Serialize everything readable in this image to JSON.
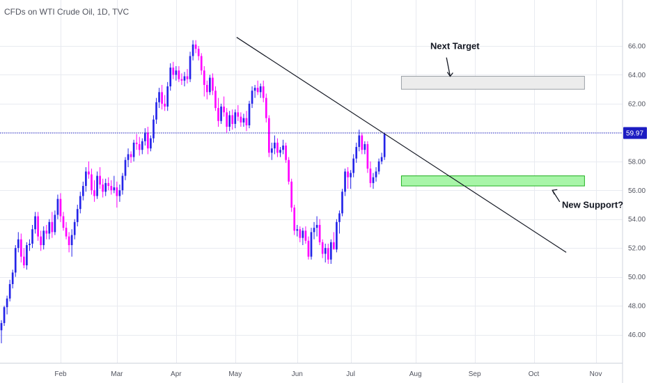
{
  "chart_data": {
    "type": "candlestick",
    "title": "CFDs on WTI Crude Oil, 1D, TVC",
    "ylim": [
      44.8,
      67.5
    ],
    "y_ticks": [
      46.0,
      48.0,
      50.0,
      52.0,
      54.0,
      56.0,
      58.0,
      60.0,
      62.0,
      64.0,
      66.0
    ],
    "y_tick_labels": [
      "46.00",
      "48.00",
      "50.00",
      "52.00",
      "54.00",
      "56.00",
      "58.00",
      "60.00",
      "62.00",
      "64.00",
      "66.00"
    ],
    "x_tick_labels": [
      "Feb",
      "Mar",
      "Apr",
      "May",
      "Jun",
      "Jul",
      "Aug",
      "Sep",
      "Oct",
      "Nov"
    ],
    "x_tick_index": [
      21,
      41,
      62,
      83,
      105,
      124,
      147,
      168,
      189,
      211
    ],
    "x_index_range": [
      -0.5,
      220.5
    ],
    "candles_ohlc": [
      [
        46.3,
        47.0,
        45.4,
        46.8
      ],
      [
        46.8,
        48.0,
        46.6,
        47.9
      ],
      [
        47.9,
        48.7,
        47.4,
        48.5
      ],
      [
        48.5,
        49.8,
        48.3,
        49.5
      ],
      [
        49.5,
        50.5,
        49.2,
        50.3
      ],
      [
        50.3,
        52.2,
        50.0,
        52.0
      ],
      [
        52.0,
        53.1,
        51.7,
        52.6
      ],
      [
        52.6,
        53.0,
        51.0,
        51.4
      ],
      [
        51.4,
        52.0,
        50.6,
        50.8
      ],
      [
        50.8,
        52.4,
        50.5,
        52.2
      ],
      [
        52.2,
        52.6,
        51.8,
        52.3
      ],
      [
        52.3,
        53.6,
        52.0,
        53.3
      ],
      [
        53.3,
        54.5,
        53.0,
        54.2
      ],
      [
        54.2,
        54.5,
        52.5,
        52.8
      ],
      [
        52.8,
        53.2,
        51.8,
        52.2
      ],
      [
        52.2,
        53.5,
        51.9,
        53.2
      ],
      [
        53.2,
        53.6,
        52.6,
        53.0
      ],
      [
        53.0,
        54.0,
        52.6,
        53.8
      ],
      [
        53.8,
        54.5,
        52.7,
        53.1
      ],
      [
        53.1,
        54.6,
        52.9,
        54.3
      ],
      [
        54.3,
        55.7,
        54.0,
        55.4
      ],
      [
        55.4,
        55.8,
        53.8,
        54.2
      ],
      [
        54.2,
        54.5,
        53.2,
        53.4
      ],
      [
        53.4,
        53.8,
        52.6,
        52.8
      ],
      [
        52.8,
        53.1,
        51.7,
        52.2
      ],
      [
        52.2,
        53.3,
        51.4,
        52.9
      ],
      [
        52.9,
        54.0,
        52.6,
        53.8
      ],
      [
        53.8,
        55.0,
        53.5,
        54.7
      ],
      [
        54.7,
        55.9,
        54.4,
        55.6
      ],
      [
        55.6,
        56.6,
        55.3,
        56.3
      ],
      [
        56.3,
        57.6,
        55.9,
        57.3
      ],
      [
        57.3,
        58.0,
        56.8,
        57.1
      ],
      [
        57.1,
        57.5,
        55.7,
        56.0
      ],
      [
        56.0,
        56.7,
        55.2,
        55.6
      ],
      [
        55.6,
        57.3,
        55.4,
        57.0
      ],
      [
        57.0,
        57.6,
        56.1,
        56.4
      ],
      [
        56.4,
        56.8,
        55.5,
        55.9
      ],
      [
        55.9,
        56.8,
        55.6,
        56.5
      ],
      [
        56.5,
        56.9,
        56.0,
        56.3
      ],
      [
        56.3,
        56.7,
        55.7,
        56.0
      ],
      [
        56.0,
        57.0,
        55.8,
        56.2
      ],
      [
        56.2,
        56.6,
        54.8,
        55.6
      ],
      [
        55.6,
        56.4,
        55.2,
        56.0
      ],
      [
        56.0,
        57.2,
        55.7,
        57.0
      ],
      [
        57.0,
        58.3,
        56.7,
        58.1
      ],
      [
        58.1,
        58.9,
        57.6,
        58.5
      ],
      [
        58.5,
        58.7,
        57.9,
        58.3
      ],
      [
        58.3,
        59.5,
        58.0,
        59.3
      ],
      [
        59.3,
        59.9,
        58.8,
        59.2
      ],
      [
        59.2,
        59.7,
        58.4,
        58.8
      ],
      [
        58.8,
        59.6,
        58.5,
        59.4
      ],
      [
        59.4,
        60.3,
        59.1,
        60.0
      ],
      [
        60.0,
        60.4,
        58.5,
        58.9
      ],
      [
        58.9,
        59.8,
        58.7,
        59.6
      ],
      [
        59.6,
        61.2,
        59.3,
        60.9
      ],
      [
        60.9,
        62.4,
        60.6,
        62.1
      ],
      [
        62.1,
        63.1,
        61.7,
        62.8
      ],
      [
        62.8,
        63.3,
        61.6,
        62.0
      ],
      [
        62.0,
        62.6,
        61.5,
        61.8
      ],
      [
        61.8,
        63.5,
        61.5,
        63.2
      ],
      [
        63.2,
        64.8,
        62.9,
        64.5
      ],
      [
        64.5,
        64.9,
        63.7,
        64.0
      ],
      [
        64.0,
        64.6,
        63.6,
        64.3
      ],
      [
        64.3,
        64.6,
        63.5,
        63.7
      ],
      [
        63.7,
        64.1,
        63.3,
        63.6
      ],
      [
        63.6,
        64.2,
        63.2,
        63.9
      ],
      [
        63.9,
        64.4,
        63.4,
        63.7
      ],
      [
        63.7,
        65.6,
        63.5,
        65.3
      ],
      [
        65.3,
        66.4,
        65.0,
        66.1
      ],
      [
        66.1,
        66.4,
        65.5,
        65.8
      ],
      [
        65.8,
        66.0,
        65.0,
        65.3
      ],
      [
        65.3,
        65.5,
        64.0,
        64.3
      ],
      [
        64.3,
        64.6,
        62.5,
        63.3
      ],
      [
        63.3,
        63.6,
        62.3,
        62.8
      ],
      [
        62.8,
        64.0,
        62.6,
        63.8
      ],
      [
        63.8,
        64.1,
        62.6,
        62.9
      ],
      [
        62.9,
        63.2,
        61.5,
        61.7
      ],
      [
        61.7,
        62.4,
        60.4,
        60.8
      ],
      [
        60.8,
        62.0,
        60.6,
        61.8
      ],
      [
        61.8,
        62.5,
        61.1,
        61.4
      ],
      [
        61.4,
        61.7,
        60.0,
        60.4
      ],
      [
        60.4,
        61.5,
        60.1,
        61.2
      ],
      [
        61.2,
        61.6,
        60.2,
        60.6
      ],
      [
        60.6,
        61.6,
        60.3,
        61.4
      ],
      [
        61.4,
        61.9,
        60.8,
        61.1
      ],
      [
        61.1,
        61.4,
        60.4,
        60.7
      ],
      [
        60.7,
        61.3,
        60.4,
        61.0
      ],
      [
        61.0,
        61.5,
        60.1,
        60.5
      ],
      [
        60.5,
        62.2,
        60.3,
        62.0
      ],
      [
        62.0,
        63.2,
        61.7,
        62.9
      ],
      [
        62.9,
        63.3,
        62.4,
        63.1
      ],
      [
        63.1,
        63.6,
        62.6,
        62.8
      ],
      [
        62.8,
        63.4,
        62.4,
        63.2
      ],
      [
        63.2,
        63.6,
        62.1,
        62.4
      ],
      [
        62.4,
        62.7,
        60.7,
        61.0
      ],
      [
        61.0,
        61.2,
        58.3,
        58.6
      ],
      [
        58.6,
        59.3,
        58.1,
        58.9
      ],
      [
        58.9,
        59.8,
        58.5,
        59.3
      ],
      [
        59.3,
        59.6,
        58.3,
        58.6
      ],
      [
        58.6,
        59.0,
        58.3,
        58.8
      ],
      [
        58.8,
        59.5,
        58.5,
        59.1
      ],
      [
        59.1,
        59.3,
        57.9,
        58.1
      ],
      [
        58.1,
        58.3,
        56.4,
        56.6
      ],
      [
        56.6,
        56.8,
        54.5,
        54.8
      ],
      [
        54.8,
        55.0,
        52.9,
        53.2
      ],
      [
        53.2,
        53.6,
        52.8,
        53.3
      ],
      [
        53.3,
        53.5,
        52.4,
        52.7
      ],
      [
        52.7,
        53.4,
        52.2,
        53.2
      ],
      [
        53.2,
        53.5,
        52.3,
        52.5
      ],
      [
        52.5,
        52.8,
        51.2,
        51.4
      ],
      [
        51.4,
        53.4,
        51.2,
        53.1
      ],
      [
        53.1,
        53.8,
        52.6,
        53.4
      ],
      [
        53.4,
        54.2,
        52.8,
        53.6
      ],
      [
        53.6,
        54.0,
        52.2,
        52.4
      ],
      [
        52.4,
        52.6,
        51.3,
        51.6
      ],
      [
        51.6,
        52.3,
        51.0,
        52.0
      ],
      [
        52.0,
        52.3,
        50.9,
        51.2
      ],
      [
        51.2,
        52.6,
        50.9,
        52.4
      ],
      [
        52.4,
        53.1,
        52.0,
        51.9
      ],
      [
        51.9,
        54.0,
        51.7,
        53.8
      ],
      [
        53.8,
        54.6,
        53.0,
        54.4
      ],
      [
        54.4,
        56.1,
        54.2,
        55.9
      ],
      [
        55.9,
        57.5,
        55.6,
        57.3
      ],
      [
        57.3,
        57.6,
        56.1,
        56.9
      ],
      [
        56.9,
        57.4,
        56.1,
        57.2
      ],
      [
        57.2,
        58.5,
        56.9,
        58.2
      ],
      [
        58.2,
        59.3,
        57.9,
        59.0
      ],
      [
        59.0,
        60.2,
        58.7,
        59.8
      ],
      [
        59.8,
        60.0,
        58.5,
        58.8
      ],
      [
        58.8,
        59.4,
        58.5,
        59.2
      ],
      [
        59.2,
        59.4,
        57.2,
        57.5
      ],
      [
        57.5,
        58.0,
        56.2,
        56.5
      ],
      [
        56.5,
        57.2,
        56.1,
        56.9
      ],
      [
        56.9,
        57.6,
        56.6,
        57.3
      ],
      [
        57.3,
        58.2,
        57.1,
        58.0
      ],
      [
        58.0,
        58.6,
        57.8,
        58.3
      ],
      [
        58.3,
        60.0,
        58.1,
        59.9
      ]
    ],
    "resistance_line": {
      "x": [
        83.5,
        200.5
      ],
      "y": [
        66.6,
        51.7
      ]
    },
    "current_price": 59.97,
    "current_price_label": "59.97",
    "zones": [
      {
        "name": "next-target-zone",
        "x": [
          142,
          207
        ],
        "y": [
          63.0,
          63.9
        ]
      },
      {
        "name": "new-support-zone",
        "x": [
          142,
          207
        ],
        "y": [
          56.3,
          57.0
        ]
      }
    ],
    "annotations": {
      "next_target": "Next Target",
      "new_support": "New Support?"
    },
    "colors": {
      "up": "#2424e8",
      "down": "#ff00ff",
      "grid": "#e8eaf0",
      "axis_text": "#50535e",
      "price_line": "#2a2acc",
      "price_label_bg": "#1c1cc2",
      "target_fill": "#ececec",
      "target_stroke": "#9aa0a6",
      "support_fill": "#a8f5a8",
      "support_stroke": "#22b122"
    }
  }
}
